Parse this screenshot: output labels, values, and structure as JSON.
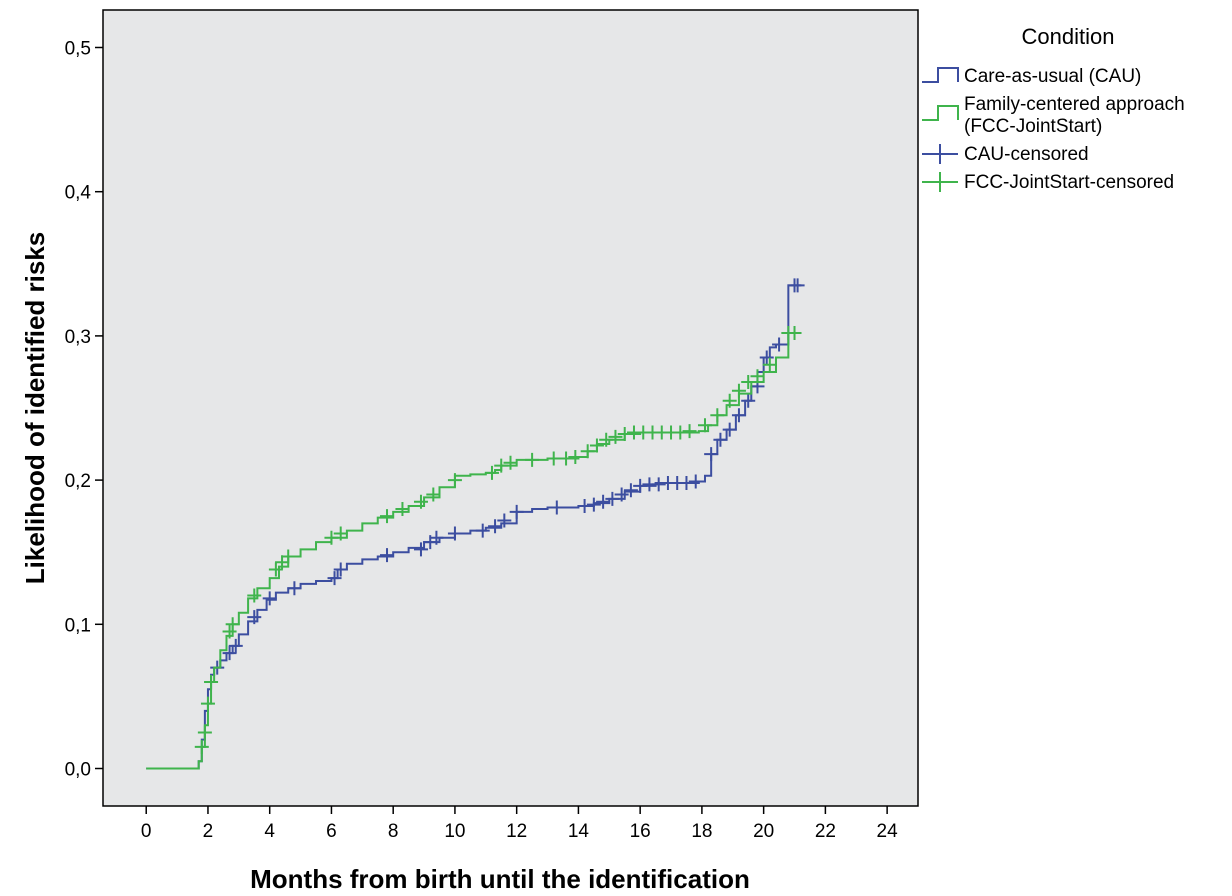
{
  "chart_data": {
    "type": "line",
    "step": true,
    "xlabel": "Months from birth until the identification",
    "ylabel": "Likelihood of identified risks",
    "xlim": [
      -1.4,
      25.0
    ],
    "ylim": [
      -0.026,
      0.526
    ],
    "x_ticks": [
      0,
      2,
      4,
      6,
      8,
      10,
      12,
      14,
      16,
      18,
      20,
      22,
      24
    ],
    "x_tick_labels": [
      "0",
      "2",
      "4",
      "6",
      "8",
      "10",
      "12",
      "14",
      "16",
      "18",
      "20",
      "22",
      "24"
    ],
    "y_ticks": [
      0.0,
      0.1,
      0.2,
      0.3,
      0.4,
      0.5
    ],
    "y_tick_labels": [
      "0,0",
      "0,1",
      "0,2",
      "0,3",
      "0,4",
      "0,5"
    ],
    "grid": false,
    "plot_background": "#e6e7e8",
    "legend": {
      "title": "Condition",
      "placement": "right",
      "entries": [
        {
          "label_lines": [
            "Care-as-usual (CAU)"
          ],
          "marker": "step",
          "color": "#3c4ea0"
        },
        {
          "label_lines": [
            "Family-centered approach",
            "(FCC-JointStart)"
          ],
          "marker": "step",
          "color": "#3fb44c"
        },
        {
          "label_lines": [
            "CAU-censored"
          ],
          "marker": "plus",
          "color": "#3c4ea0"
        },
        {
          "label_lines": [
            "FCC-JointStart-censored"
          ],
          "marker": "plus",
          "color": "#3fb44c"
        }
      ]
    },
    "series": [
      {
        "name": "Care-as-usual (CAU)",
        "color": "#3c4ea0",
        "x": [
          0,
          1.6,
          1.7,
          1.8,
          1.9,
          2.0,
          2.1,
          2.2,
          2.4,
          2.6,
          2.8,
          3.0,
          3.3,
          3.6,
          3.9,
          4.2,
          4.6,
          5.0,
          5.5,
          6.0,
          6.2,
          6.5,
          7.0,
          7.5,
          8.0,
          8.5,
          9.0,
          9.5,
          10.0,
          10.5,
          11.0,
          11.5,
          12.0,
          12.5,
          13.0,
          14.0,
          14.5,
          15.0,
          15.5,
          16.0,
          16.5,
          17.0,
          17.5,
          17.9,
          18.1,
          18.3,
          18.5,
          18.8,
          19.1,
          19.4,
          19.6,
          19.8,
          20.0,
          20.2,
          20.4,
          20.8,
          20.8,
          21.2
        ],
        "y": [
          0,
          0,
          0.005,
          0.02,
          0.04,
          0.055,
          0.065,
          0.07,
          0.075,
          0.08,
          0.085,
          0.093,
          0.102,
          0.11,
          0.117,
          0.122,
          0.125,
          0.128,
          0.13,
          0.132,
          0.138,
          0.142,
          0.145,
          0.147,
          0.15,
          0.153,
          0.157,
          0.16,
          0.163,
          0.165,
          0.167,
          0.17,
          0.178,
          0.18,
          0.181,
          0.182,
          0.184,
          0.187,
          0.192,
          0.196,
          0.198,
          0.198,
          0.198,
          0.199,
          0.203,
          0.218,
          0.228,
          0.235,
          0.245,
          0.255,
          0.265,
          0.275,
          0.285,
          0.292,
          0.294,
          0.294,
          0.335,
          0.335
        ],
        "censored_x": [
          2.3,
          2.7,
          2.9,
          3.5,
          4.0,
          4.8,
          6.1,
          6.3,
          7.8,
          8.9,
          9.2,
          9.4,
          10.0,
          10.9,
          11.3,
          11.6,
          12.0,
          13.3,
          14.2,
          14.5,
          14.8,
          15.1,
          15.4,
          15.7,
          16.0,
          16.3,
          16.6,
          16.9,
          17.2,
          17.5,
          17.8,
          18.3,
          18.6,
          18.9,
          19.2,
          19.5,
          19.8,
          20.1,
          20.5,
          21.0,
          21.1
        ],
        "censored_y": [
          0.07,
          0.08,
          0.085,
          0.105,
          0.118,
          0.125,
          0.132,
          0.138,
          0.148,
          0.152,
          0.157,
          0.16,
          0.163,
          0.165,
          0.168,
          0.172,
          0.178,
          0.181,
          0.182,
          0.183,
          0.185,
          0.187,
          0.19,
          0.193,
          0.196,
          0.197,
          0.197,
          0.198,
          0.198,
          0.198,
          0.199,
          0.218,
          0.228,
          0.235,
          0.245,
          0.255,
          0.265,
          0.285,
          0.294,
          0.335,
          0.335
        ]
      },
      {
        "name": "Family-centered approach (FCC-JointStart)",
        "color": "#3fb44c",
        "x": [
          0,
          1.7,
          1.8,
          1.9,
          2.0,
          2.1,
          2.2,
          2.4,
          2.6,
          2.8,
          3.0,
          3.3,
          3.6,
          4.0,
          4.3,
          4.6,
          5.0,
          5.5,
          6.0,
          6.5,
          7.0,
          7.5,
          8.0,
          8.5,
          9.0,
          9.5,
          10.0,
          10.5,
          11.0,
          11.3,
          11.5,
          12.0,
          13.0,
          14.0,
          14.3,
          14.6,
          15.0,
          15.5,
          16.0,
          17.0,
          17.5,
          17.9,
          18.2,
          18.5,
          18.8,
          19.2,
          19.6,
          20.0,
          20.4,
          20.8,
          21.2
        ],
        "y": [
          0,
          0.005,
          0.015,
          0.03,
          0.045,
          0.06,
          0.07,
          0.082,
          0.092,
          0.1,
          0.108,
          0.118,
          0.125,
          0.132,
          0.14,
          0.147,
          0.152,
          0.157,
          0.16,
          0.165,
          0.17,
          0.174,
          0.178,
          0.182,
          0.188,
          0.195,
          0.203,
          0.204,
          0.205,
          0.207,
          0.21,
          0.214,
          0.215,
          0.216,
          0.22,
          0.225,
          0.228,
          0.232,
          0.233,
          0.233,
          0.233,
          0.234,
          0.238,
          0.245,
          0.252,
          0.26,
          0.268,
          0.275,
          0.285,
          0.302,
          0.302
        ],
        "censored_x": [
          1.8,
          1.9,
          2.0,
          2.1,
          2.7,
          2.8,
          3.5,
          4.2,
          4.4,
          4.6,
          6.0,
          6.3,
          7.8,
          8.3,
          8.9,
          9.3,
          10.0,
          11.2,
          11.5,
          11.8,
          12.5,
          13.2,
          13.6,
          13.9,
          14.3,
          14.6,
          14.9,
          15.2,
          15.5,
          15.8,
          16.1,
          16.4,
          16.7,
          17.0,
          17.3,
          17.6,
          18.1,
          18.5,
          18.9,
          19.2,
          19.5,
          19.8,
          20.2,
          20.8,
          21.0
        ],
        "censored_y": [
          0.015,
          0.025,
          0.045,
          0.06,
          0.095,
          0.1,
          0.12,
          0.138,
          0.143,
          0.147,
          0.16,
          0.163,
          0.175,
          0.18,
          0.185,
          0.19,
          0.2,
          0.205,
          0.21,
          0.212,
          0.214,
          0.215,
          0.215,
          0.216,
          0.22,
          0.224,
          0.228,
          0.23,
          0.232,
          0.233,
          0.233,
          0.233,
          0.233,
          0.233,
          0.233,
          0.234,
          0.238,
          0.245,
          0.255,
          0.262,
          0.268,
          0.272,
          0.28,
          0.302,
          0.302
        ]
      }
    ]
  }
}
